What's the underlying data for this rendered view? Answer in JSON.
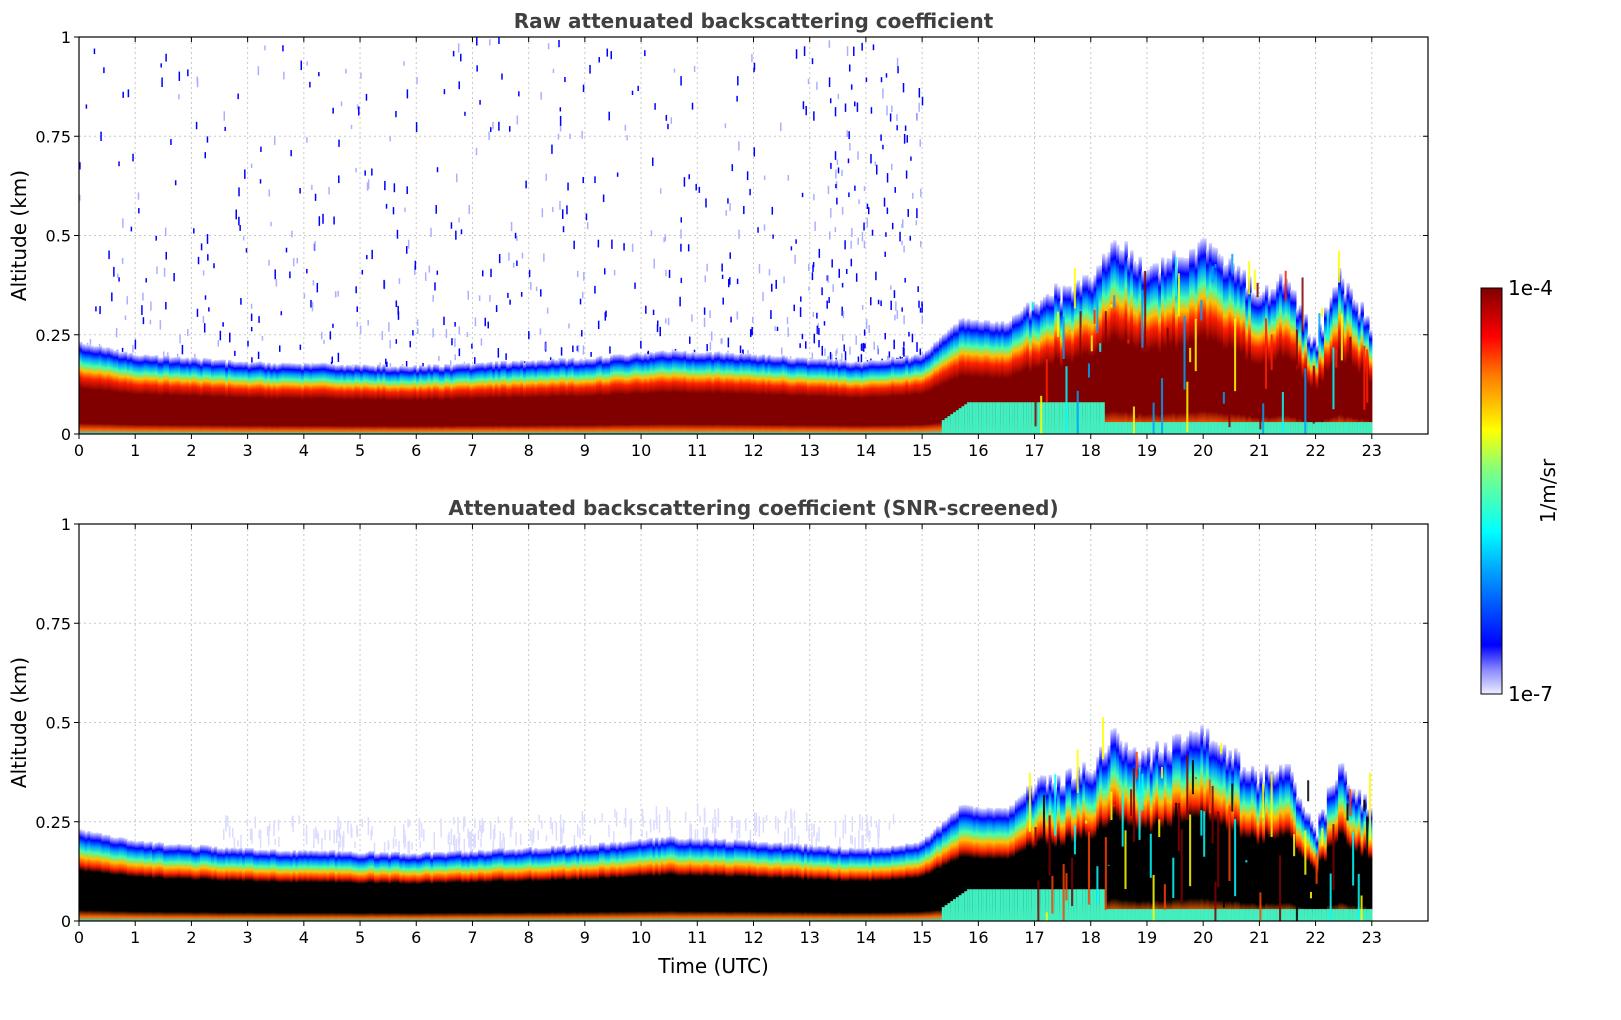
{
  "chart_data": [
    {
      "type": "heatmap",
      "title": "Raw attenuated backscattering coefficient",
      "xlabel": "",
      "ylabel": "Altitude (km)",
      "xlim": [
        0,
        24
      ],
      "ylim": [
        0,
        1
      ],
      "xticks": [
        "0",
        "1",
        "2",
        "3",
        "4",
        "5",
        "6",
        "7",
        "8",
        "9",
        "10",
        "11",
        "12",
        "13",
        "14",
        "15",
        "16",
        "17",
        "18",
        "19",
        "20",
        "21",
        "22",
        "23"
      ],
      "yticks": [
        "0",
        "0.25",
        "0.5",
        "0.75",
        "1"
      ],
      "grid": true,
      "data_end_time": 23,
      "screened": false,
      "layer_top_km": [
        [
          0,
          0.23
        ],
        [
          1,
          0.2
        ],
        [
          3,
          0.18
        ],
        [
          6,
          0.17
        ],
        [
          9,
          0.19
        ],
        [
          10.5,
          0.21
        ],
        [
          12,
          0.2
        ],
        [
          14,
          0.18
        ],
        [
          15,
          0.2
        ],
        [
          15.7,
          0.29
        ],
        [
          16.5,
          0.28
        ],
        [
          17,
          0.34
        ],
        [
          18,
          0.38
        ],
        [
          18.4,
          0.5
        ],
        [
          19,
          0.42
        ],
        [
          19.7,
          0.45
        ],
        [
          20,
          0.48
        ],
        [
          20.5,
          0.42
        ],
        [
          21,
          0.36
        ],
        [
          21.5,
          0.4
        ],
        [
          22,
          0.22
        ],
        [
          22.4,
          0.4
        ],
        [
          23,
          0.28
        ]
      ],
      "noise_note_km": [
        0.25,
        1.0
      ]
    },
    {
      "type": "heatmap",
      "title": "Attenuated backscattering coefficient (SNR-screened)",
      "xlabel": "Time (UTC)",
      "ylabel": "Altitude (km)",
      "xlim": [
        0,
        24
      ],
      "ylim": [
        0,
        1
      ],
      "xticks": [
        "0",
        "1",
        "2",
        "3",
        "4",
        "5",
        "6",
        "7",
        "8",
        "9",
        "10",
        "11",
        "12",
        "13",
        "14",
        "15",
        "16",
        "17",
        "18",
        "19",
        "20",
        "21",
        "22",
        "23"
      ],
      "yticks": [
        "0",
        "0.25",
        "0.5",
        "0.75",
        "1"
      ],
      "grid": true,
      "data_end_time": 23,
      "screened": true,
      "layer_top_km": [
        [
          0,
          0.23
        ],
        [
          1,
          0.2
        ],
        [
          3,
          0.18
        ],
        [
          6,
          0.17
        ],
        [
          9,
          0.19
        ],
        [
          10.5,
          0.21
        ],
        [
          12,
          0.2
        ],
        [
          14,
          0.18
        ],
        [
          15,
          0.2
        ],
        [
          15.7,
          0.29
        ],
        [
          16.5,
          0.28
        ],
        [
          17,
          0.34
        ],
        [
          18,
          0.38
        ],
        [
          18.4,
          0.48
        ],
        [
          19,
          0.42
        ],
        [
          19.7,
          0.46
        ],
        [
          20,
          0.49
        ],
        [
          20.5,
          0.42
        ],
        [
          21,
          0.36
        ],
        [
          21.5,
          0.4
        ],
        [
          22,
          0.22
        ],
        [
          22.4,
          0.39
        ],
        [
          23,
          0.28
        ]
      ]
    }
  ],
  "colorbar": {
    "label": "1/m/sr",
    "max_label": "1e-4",
    "min_label": "1e-7",
    "colormap": "jet"
  }
}
